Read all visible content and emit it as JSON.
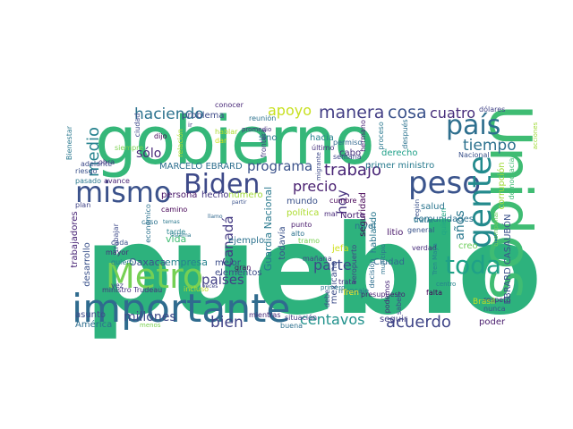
{
  "words": [
    {
      "text": "pueblo",
      "color": "#2db27d"
    },
    {
      "text": "Unidos",
      "color": "#3fbc73"
    },
    {
      "text": "gobierno",
      "color": "#35b779"
    },
    {
      "text": "importante",
      "color": "#2f6b8e"
    },
    {
      "text": "Metro",
      "color": "#75d054"
    },
    {
      "text": "mismo",
      "color": "#3b528b"
    },
    {
      "text": "Biden",
      "color": "#3e4a89"
    },
    {
      "text": "país",
      "color": "#2e6f8e"
    },
    {
      "text": "peso",
      "color": "#3a548c"
    },
    {
      "text": "gente",
      "color": "#238a8d"
    },
    {
      "text": "toda",
      "color": "#1fa187"
    },
    {
      "text": "haciendo",
      "color": "#2c728e"
    },
    {
      "text": "manera",
      "color": "#433e85"
    },
    {
      "text": "cosa",
      "color": "#3b528b"
    },
    {
      "text": "cuatro",
      "color": "#472d7b"
    },
    {
      "text": "apoyo",
      "color": "#c8e020"
    },
    {
      "text": "medio",
      "color": "#26828e"
    },
    {
      "text": "trabajo",
      "color": "#482576"
    },
    {
      "text": "tiempo",
      "color": "#2d718e"
    },
    {
      "text": "programa",
      "color": "#3b528b"
    },
    {
      "text": "precio",
      "color": "#481f70"
    },
    {
      "text": "hoy",
      "color": "#46327e"
    },
    {
      "text": "parte",
      "color": "#3e4a89"
    },
    {
      "text": "Canadá",
      "color": "#443a83"
    },
    {
      "text": "países",
      "color": "#424086"
    },
    {
      "text": "bien",
      "color": "#414487"
    },
    {
      "text": "millones",
      "color": "#3e4989"
    },
    {
      "text": "centavos",
      "color": "#21918c"
    },
    {
      "text": "acuerdo",
      "color": "#404688"
    },
    {
      "text": "años",
      "color": "#2a788e"
    },
    {
      "text": "sólo",
      "color": "#482878"
    },
    {
      "text": "Oaxaca",
      "color": "#3b528b"
    },
    {
      "text": "empresa",
      "color": "#26828e"
    },
    {
      "text": "vida",
      "color": "#3fbc73"
    },
    {
      "text": "ejemplo",
      "color": "#2c728e"
    },
    {
      "text": "problema",
      "color": "#3e4a89"
    },
    {
      "text": "MARCELO EBRARD",
      "color": "#2e6e8e"
    },
    {
      "text": "persona",
      "color": "#481668"
    },
    {
      "text": "hecho",
      "color": "#453781"
    },
    {
      "text": "número",
      "color": "#a0da39"
    },
    {
      "text": "mejor",
      "color": "#3d4e8a"
    },
    {
      "text": "elementos",
      "color": "#3e4c8a"
    },
    {
      "text": "Guardia Nacional",
      "color": "#29798e"
    },
    {
      "text": "todavía",
      "color": "#3b528b"
    },
    {
      "text": "mexicano",
      "color": "#3d4d8a"
    },
    {
      "text": "EBRARD CASAUBÓN",
      "color": "#3b528b"
    },
    {
      "text": "Ciudad",
      "color": "#31688e"
    },
    {
      "text": "hablando",
      "color": "#2a778e"
    },
    {
      "text": "seguridad",
      "color": "#440154"
    },
    {
      "text": "primer ministro",
      "color": "#297b8e"
    },
    {
      "text": "derecho",
      "color": "#1fa088"
    },
    {
      "text": "comunidades",
      "color": "#2c718e"
    },
    {
      "text": "salud",
      "color": "#2b758e"
    },
    {
      "text": "nivel",
      "color": "#2c738e"
    },
    {
      "text": "Norte",
      "color": "#482173"
    },
    {
      "text": "mundo",
      "color": "#3b528b"
    },
    {
      "text": "política",
      "color": "#addc30"
    },
    {
      "text": "jefa",
      "color": "#d0e11c"
    },
    {
      "text": "creo",
      "color": "#6ccd5a"
    },
    {
      "text": "trabajadores",
      "color": "#482475"
    },
    {
      "text": "desarrollo",
      "color": "#3b528b"
    },
    {
      "text": "asunto",
      "color": "#3e4a89"
    },
    {
      "text": "América",
      "color": "#2e6e8e"
    },
    {
      "text": "seguir",
      "color": "#424186"
    },
    {
      "text": "poder",
      "color": "#481b6d"
    },
    {
      "text": "hacia",
      "color": "#26828e"
    },
    {
      "text": "sino",
      "color": "#2a768e"
    },
    {
      "text": "cabo",
      "color": "#472f7d"
    },
    {
      "text": "litio",
      "color": "#481769"
    },
    {
      "text": "corrupción",
      "color": "#a0da39"
    },
    {
      "text": "falta",
      "color": "#440154"
    },
    {
      "text": "mal",
      "color": "#482979"
    },
    {
      "text": "punto",
      "color": "#481a6c"
    },
    {
      "text": "alto",
      "color": "#2c728e"
    },
    {
      "text": "tramo",
      "color": "#7ad151"
    },
    {
      "text": "tratar",
      "color": "#2a768e"
    },
    {
      "text": "general",
      "color": "#3a538b"
    },
    {
      "text": "verdad",
      "color": "#472c7a"
    },
    {
      "text": "quieren",
      "color": "#22a785"
    },
    {
      "text": "cumbre",
      "color": "#440154"
    },
    {
      "text": "mañana",
      "color": "#414487"
    },
    {
      "text": "trata",
      "color": "#46337f"
    },
    {
      "text": "mientras",
      "color": "#482878"
    },
    {
      "text": "situación",
      "color": "#443983"
    },
    {
      "text": "buena",
      "color": "#2d708e"
    },
    {
      "text": "presupuesto",
      "color": "#481f70"
    },
    {
      "text": "mensaje",
      "color": "#2e6d8e"
    },
    {
      "text": "debe",
      "color": "#3e4989"
    },
    {
      "text": "ministro Trudeau",
      "color": "#46307e"
    },
    {
      "text": "incluso",
      "color": "#c2df23"
    },
    {
      "text": "gran",
      "color": "#46085c"
    },
    {
      "text": "cada",
      "color": "#3b528b"
    },
    {
      "text": "mayor",
      "color": "#472a7a"
    },
    {
      "text": "quiero",
      "color": "#29798e"
    },
    {
      "text": "caso",
      "color": "#2c728e"
    },
    {
      "text": "tarde",
      "color": "#26828e"
    },
    {
      "text": "camino",
      "color": "#440154"
    },
    {
      "text": "plan",
      "color": "#414487"
    },
    {
      "text": "riesgo",
      "color": "#3b528b"
    },
    {
      "text": "pasado",
      "color": "#2a788e"
    },
    {
      "text": "avance",
      "color": "#482475"
    },
    {
      "text": "adelante",
      "color": "#3e4a89"
    },
    {
      "text": "dijo",
      "color": "#440154"
    },
    {
      "text": "conocer",
      "color": "#482878"
    },
    {
      "text": "reunión",
      "color": "#2c728e"
    },
    {
      "text": "hablar",
      "color": "#addc30"
    },
    {
      "text": "dar",
      "color": "#d0e11c"
    },
    {
      "text": "frontera",
      "color": "#443983"
    },
    {
      "text": "último",
      "color": "#46327e"
    },
    {
      "text": "semana",
      "color": "#3e4a89"
    },
    {
      "text": "permiso",
      "color": "#31688e"
    },
    {
      "text": "proceso",
      "color": "#2a788e"
    },
    {
      "text": "hermano",
      "color": "#482173"
    },
    {
      "text": "Nacional",
      "color": "#3b528b"
    },
    {
      "text": "dólares",
      "color": "#414487"
    },
    {
      "text": "respeto",
      "color": "#46307e"
    },
    {
      "text": "nunca",
      "color": "#3b528b"
    },
    {
      "text": "después",
      "color": "#2c728e"
    },
    {
      "text": "centro",
      "color": "#26828e"
    },
    {
      "text": "podemos",
      "color": "#482878"
    },
    {
      "text": "saben",
      "color": "#3e4a89"
    },
    {
      "text": "aeropuerto",
      "color": "#424086"
    },
    {
      "text": "decisión",
      "color": "#2e6e8e"
    },
    {
      "text": "Bienestar",
      "color": "#2a788e"
    },
    {
      "text": "siempre",
      "color": "#7ad151"
    },
    {
      "text": "relación",
      "color": "#addc30"
    },
    {
      "text": "ciudad",
      "color": "#3e4989"
    },
    {
      "text": "obra",
      "color": "#443983"
    },
    {
      "text": "trabajar",
      "color": "#3e4a89"
    },
    {
      "text": "económico",
      "color": "#2c728e"
    },
    {
      "text": "sistema",
      "color": "#2a788e"
    },
    {
      "text": "llamo",
      "color": "#31688e"
    },
    {
      "text": "partir",
      "color": "#3b528b"
    },
    {
      "text": "vez",
      "color": "#414487"
    },
    {
      "text": "Tren",
      "color": "#fde725"
    },
    {
      "text": "Brasil",
      "color": "#c2df23"
    },
    {
      "text": "Tren Maya",
      "color": "#26828e"
    },
    {
      "text": "acciones",
      "color": "#a0da39"
    },
    {
      "text": "democracia",
      "color": "#3fbc73"
    },
    {
      "text": "acompañar",
      "color": "#6ccd5a"
    },
    {
      "text": "municipio",
      "color": "#2c728e"
    },
    {
      "text": "primero",
      "color": "#2a788e"
    },
    {
      "text": "menos",
      "color": "#7ad151"
    },
    {
      "text": "migrante",
      "color": "#3e4a89"
    },
    {
      "text": "ir",
      "color": "#443983"
    },
    {
      "text": "promedio",
      "color": "#46327e"
    },
    {
      "text": "región",
      "color": "#3b528b"
    },
    {
      "text": "temas",
      "color": "#2a788e"
    },
    {
      "text": "veces",
      "color": "#414487"
    }
  ]
}
